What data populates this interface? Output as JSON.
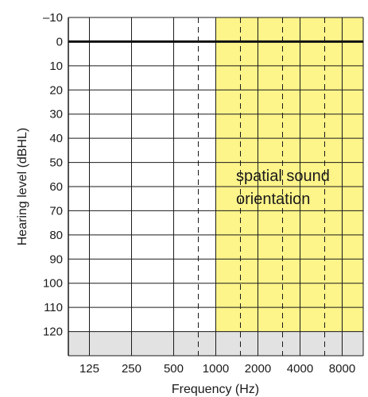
{
  "chart_data": {
    "type": "audiogram",
    "xlabel": "Frequency (Hz)",
    "ylabel": "Hearing level (dBHL)",
    "x_ticks": [
      "125",
      "250",
      "500",
      "1000",
      "2000",
      "4000",
      "8000"
    ],
    "x_scale": "log2",
    "x_range_hz": [
      88.4,
      11314
    ],
    "y_ticks": [
      "–10",
      "0",
      "10",
      "20",
      "30",
      "40",
      "50",
      "60",
      "70",
      "80",
      "90",
      "100",
      "110",
      "120"
    ],
    "y_range": [
      -10,
      130
    ],
    "y_inverted": true,
    "reference_line_db": 0,
    "dashed_intermediate_hz": [
      750,
      1500,
      3000,
      6000
    ],
    "shaded_band": {
      "label_lines": [
        "spatial sound",
        "orientation"
      ],
      "from_hz": 1000,
      "to_hz": 11314,
      "from_db": -10,
      "to_db": 120,
      "color": "#fdf48a"
    },
    "below_range": {
      "from_db": 120,
      "to_db": 130,
      "color": "#e2e2e2"
    },
    "grid": true,
    "colors": {
      "grid": "#1a1a1a",
      "reference_line": "#111111"
    }
  }
}
